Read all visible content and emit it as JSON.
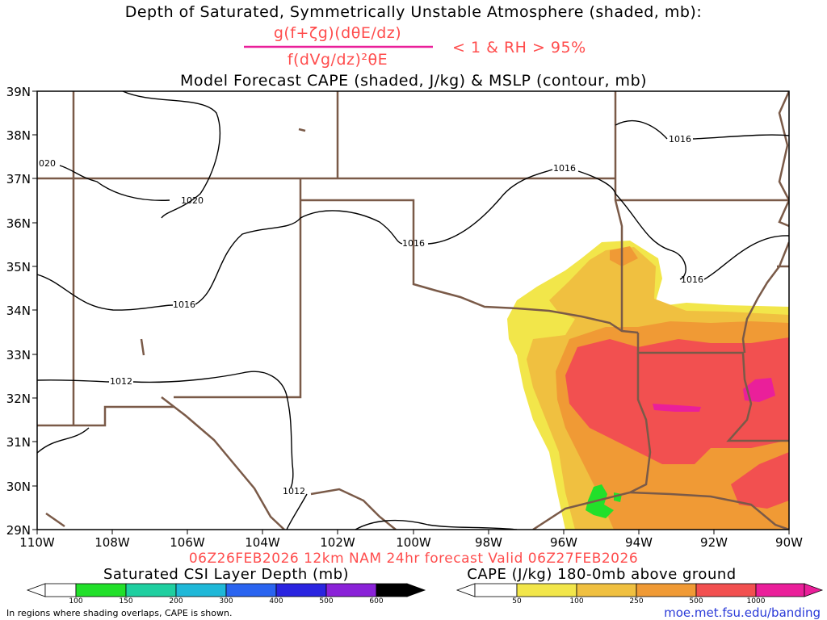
{
  "titles": {
    "line1": "Depth of Saturated, Symmetrically Unstable Atmosphere (shaded, mb):",
    "numerator": "g(f+ζg)(dθE/dz)",
    "denominator": "f(dVg/dz)²θE",
    "condition": "< 1 & RH > 95%",
    "line3": "Model Forecast CAPE (shaded, J/kg) & MSLP (contour, mb)"
  },
  "map": {
    "lat_labels": [
      "39N",
      "38N",
      "37N",
      "36N",
      "35N",
      "34N",
      "33N",
      "32N",
      "31N",
      "30N",
      "29N"
    ],
    "lon_labels": [
      "110W",
      "108W",
      "106W",
      "104W",
      "102W",
      "100W",
      "98W",
      "96W",
      "94W",
      "92W",
      "90W"
    ],
    "isobar_labels": [
      "020",
      "1020",
      "1016",
      "1016",
      "1016",
      "1016",
      "1016",
      "1012",
      "1012"
    ],
    "colors": {
      "state_border": "#7a5a48",
      "isobar": "#000000",
      "cape_50": "#f2e64a",
      "cape_100": "#f0c040",
      "cape_250": "#f09a35",
      "cape_500": "#f25050",
      "cape_1000": "#ea1f9a",
      "csi": "#22e02a"
    }
  },
  "footer": {
    "forecast_line": "06Z26FEB2026 12km NAM 24hr forecast Valid 06Z27FEB2026",
    "csi_title": "Saturated CSI Layer Depth (mb)",
    "cape_title": "CAPE (J/kg) 180-0mb above ground",
    "csi_ticks": [
      "100",
      "150",
      "200",
      "300",
      "400",
      "500",
      "600"
    ],
    "cape_ticks": [
      "50",
      "100",
      "250",
      "500",
      "1000"
    ],
    "note": "In regions where shading overlaps, CAPE is shown.",
    "url": "moe.met.fsu.edu/banding"
  }
}
